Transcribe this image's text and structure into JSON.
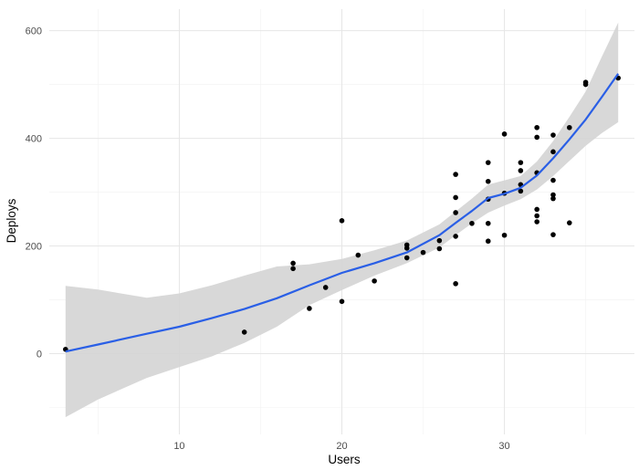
{
  "chart_data": {
    "type": "scatter",
    "title": "",
    "xlabel": "Users",
    "ylabel": "Deploys",
    "xlim": [
      2.0,
      38.0
    ],
    "ylim": [
      -150,
      640
    ],
    "x_ticks": [
      10,
      20,
      30
    ],
    "y_ticks": [
      0,
      200,
      400,
      600
    ],
    "x_minor": [
      5,
      15,
      25,
      35
    ],
    "y_minor": [
      -100,
      100,
      300,
      500
    ],
    "grid": true,
    "legend": "none",
    "colors": {
      "points": "#000000",
      "smooth_line": "#2a5fe6",
      "confidence_band": "#d4d4d4",
      "grid_major": "#e6e6e6",
      "grid_minor": "#f2f2f2"
    },
    "points": [
      {
        "x": 3,
        "y": 8
      },
      {
        "x": 14,
        "y": 40
      },
      {
        "x": 17,
        "y": 168
      },
      {
        "x": 17,
        "y": 158
      },
      {
        "x": 18,
        "y": 84
      },
      {
        "x": 19,
        "y": 123
      },
      {
        "x": 20,
        "y": 247
      },
      {
        "x": 20,
        "y": 97
      },
      {
        "x": 21,
        "y": 183
      },
      {
        "x": 22,
        "y": 135
      },
      {
        "x": 24,
        "y": 202
      },
      {
        "x": 24,
        "y": 196
      },
      {
        "x": 24,
        "y": 178
      },
      {
        "x": 25,
        "y": 188
      },
      {
        "x": 26,
        "y": 210
      },
      {
        "x": 26,
        "y": 195
      },
      {
        "x": 27,
        "y": 333
      },
      {
        "x": 27,
        "y": 290
      },
      {
        "x": 27,
        "y": 262
      },
      {
        "x": 27,
        "y": 218
      },
      {
        "x": 27,
        "y": 130
      },
      {
        "x": 28,
        "y": 242
      },
      {
        "x": 29,
        "y": 355
      },
      {
        "x": 29,
        "y": 320
      },
      {
        "x": 29,
        "y": 287
      },
      {
        "x": 29,
        "y": 242
      },
      {
        "x": 29,
        "y": 209
      },
      {
        "x": 30,
        "y": 408
      },
      {
        "x": 30,
        "y": 298
      },
      {
        "x": 30,
        "y": 220
      },
      {
        "x": 31,
        "y": 355
      },
      {
        "x": 31,
        "y": 340
      },
      {
        "x": 31,
        "y": 314
      },
      {
        "x": 31,
        "y": 302
      },
      {
        "x": 32,
        "y": 420
      },
      {
        "x": 32,
        "y": 402
      },
      {
        "x": 32,
        "y": 336
      },
      {
        "x": 32,
        "y": 268
      },
      {
        "x": 32,
        "y": 256
      },
      {
        "x": 32,
        "y": 245
      },
      {
        "x": 33,
        "y": 406
      },
      {
        "x": 33,
        "y": 375
      },
      {
        "x": 33,
        "y": 322
      },
      {
        "x": 33,
        "y": 295
      },
      {
        "x": 33,
        "y": 288
      },
      {
        "x": 33,
        "y": 221
      },
      {
        "x": 34,
        "y": 420
      },
      {
        "x": 34,
        "y": 243
      },
      {
        "x": 35,
        "y": 504
      },
      {
        "x": 35,
        "y": 500
      },
      {
        "x": 37,
        "y": 512
      }
    ],
    "smooth": {
      "method": "loess",
      "x": [
        3,
        5,
        8,
        10,
        12,
        14,
        16,
        18,
        20,
        22,
        24,
        26,
        27,
        28,
        29,
        30,
        31,
        32,
        33,
        34,
        35,
        36,
        37
      ],
      "fit": [
        4,
        17,
        37,
        50,
        66,
        83,
        103,
        127,
        150,
        168,
        188,
        220,
        243,
        265,
        289,
        297,
        308,
        331,
        363,
        398,
        435,
        477,
        520
      ],
      "lower": [
        -118,
        -85,
        -45,
        -25,
        -5,
        20,
        50,
        90,
        118,
        145,
        168,
        197,
        220,
        242,
        262,
        275,
        287,
        305,
        330,
        358,
        386,
        410,
        430
      ],
      "upper": [
        126,
        119,
        104,
        112,
        127,
        145,
        162,
        166,
        176,
        192,
        210,
        240,
        264,
        288,
        314,
        322,
        330,
        357,
        395,
        440,
        487,
        552,
        615
      ]
    }
  }
}
